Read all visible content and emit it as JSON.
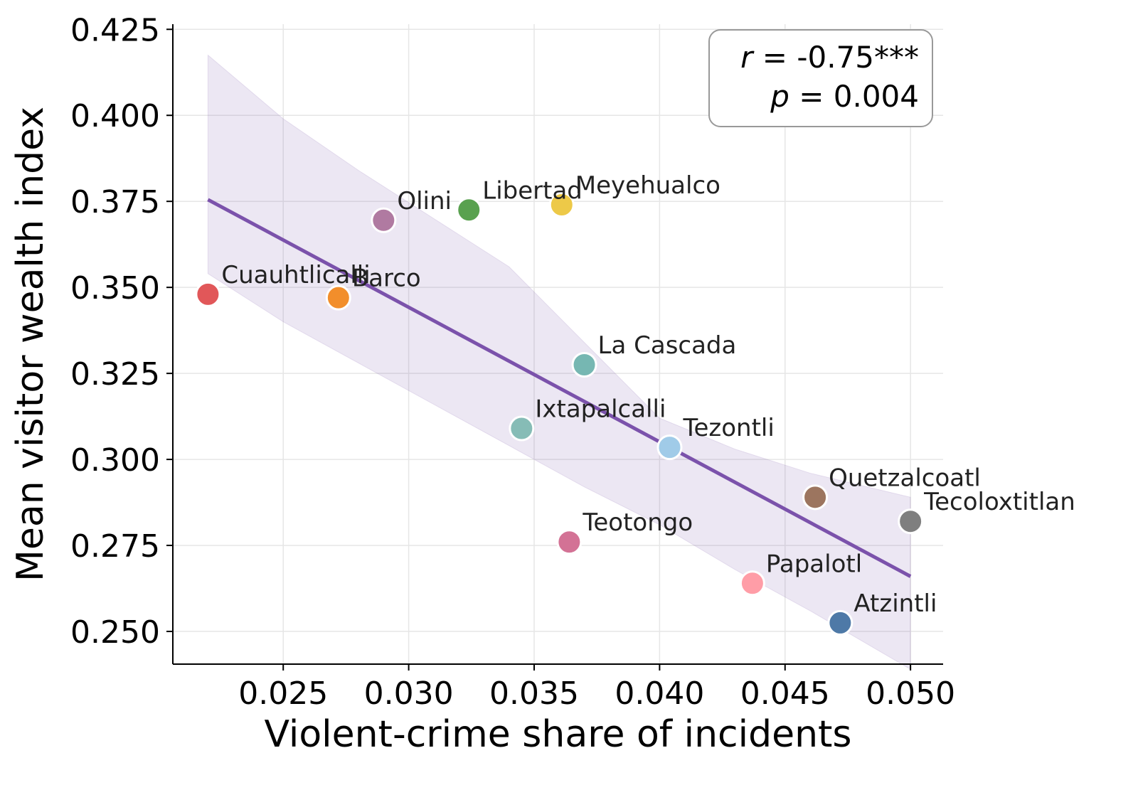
{
  "chart_data": {
    "type": "scatter",
    "xlabel": "Violent-crime share of incidents",
    "ylabel": "Mean visitor wealth index",
    "xlim": [
      0.0206,
      0.0513
    ],
    "ylim": [
      0.2405,
      0.4265
    ],
    "x_ticks": [
      0.025,
      0.03,
      0.035,
      0.04,
      0.045,
      0.05
    ],
    "x_tick_labels": [
      "0.025",
      "0.030",
      "0.035",
      "0.040",
      "0.045",
      "0.050"
    ],
    "y_ticks": [
      0.25,
      0.275,
      0.3,
      0.325,
      0.35,
      0.375,
      0.4,
      0.425
    ],
    "y_tick_labels": [
      "0.250",
      "0.275",
      "0.300",
      "0.325",
      "0.350",
      "0.375",
      "0.400",
      "0.425"
    ],
    "grid": true,
    "points": [
      {
        "label": "Cuauhtlicalli",
        "x": 0.022,
        "y": 0.348,
        "color": "#e15759"
      },
      {
        "label": "Barco",
        "x": 0.0272,
        "y": 0.347,
        "color": "#f28e2b"
      },
      {
        "label": "Olini",
        "x": 0.029,
        "y": 0.3695,
        "color": "#b07aa1"
      },
      {
        "label": "Libertad",
        "x": 0.0324,
        "y": 0.3725,
        "color": "#59a14f"
      },
      {
        "label": "Meyehualco",
        "x": 0.0361,
        "y": 0.374,
        "color": "#edc948"
      },
      {
        "label": "La Cascada",
        "x": 0.037,
        "y": 0.3275,
        "color": "#76b7b2"
      },
      {
        "label": "Ixtapalcalli",
        "x": 0.0345,
        "y": 0.309,
        "color": "#86bcb6"
      },
      {
        "label": "Tezontli",
        "x": 0.0404,
        "y": 0.3035,
        "color": "#a0cbe8"
      },
      {
        "label": "Teotongo",
        "x": 0.0364,
        "y": 0.276,
        "color": "#d37295"
      },
      {
        "label": "Quetzalcoatl",
        "x": 0.0462,
        "y": 0.289,
        "color": "#9c755f"
      },
      {
        "label": "Tecoloxtitlan",
        "x": 0.05,
        "y": 0.282,
        "color": "#7f7f7f"
      },
      {
        "label": "Papalotl",
        "x": 0.0437,
        "y": 0.264,
        "color": "#ff9da7"
      },
      {
        "label": "Atzintli",
        "x": 0.0472,
        "y": 0.2525,
        "color": "#4e79a7"
      }
    ],
    "regression": {
      "x": [
        0.022,
        0.05
      ],
      "y": [
        0.3755,
        0.266
      ],
      "color": "#7b52ab"
    },
    "confidence_band": {
      "x": [
        0.022,
        0.025,
        0.028,
        0.031,
        0.034,
        0.037,
        0.04,
        0.043,
        0.046,
        0.05
      ],
      "upper": [
        0.4175,
        0.399,
        0.384,
        0.37,
        0.356,
        0.334,
        0.312,
        0.303,
        0.296,
        0.289
      ],
      "lower": [
        0.354,
        0.34,
        0.328,
        0.316,
        0.304,
        0.292,
        0.281,
        0.268,
        0.256,
        0.239
      ],
      "color": "#7b52ab"
    },
    "annotation": {
      "r_symbol": "r",
      "r_value": " = -0.75***",
      "p_symbol": "p",
      "p_value": " = 0.004",
      "placement": "top-right"
    }
  }
}
